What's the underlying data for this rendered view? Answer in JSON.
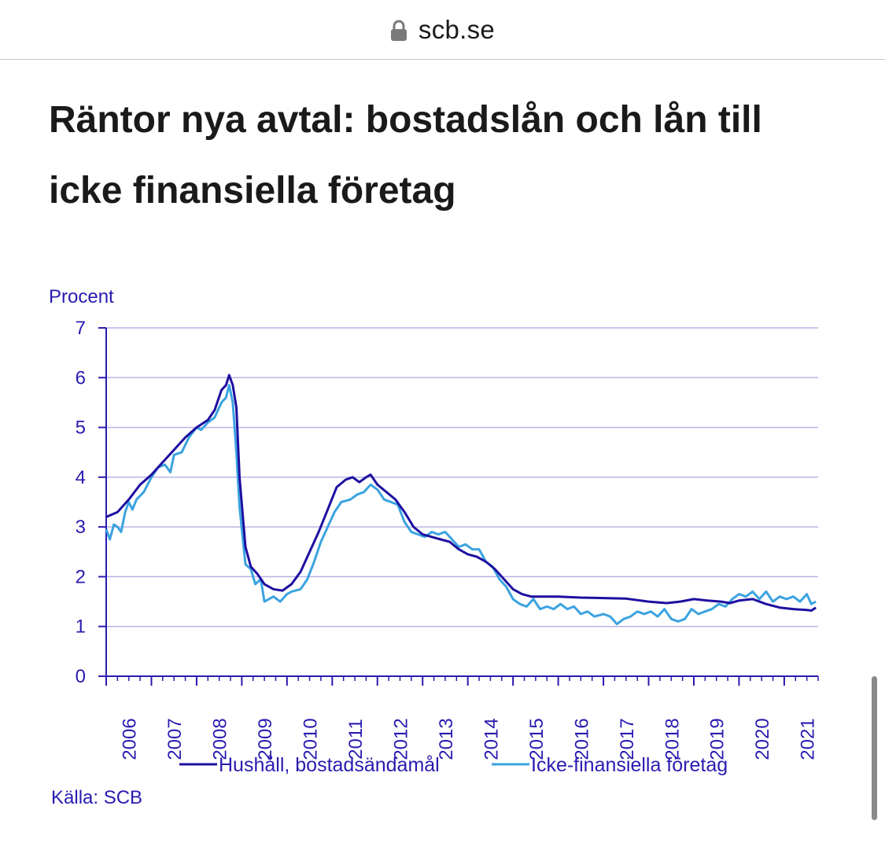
{
  "browser": {
    "domain": "scb.se",
    "lock_icon": "lock-icon"
  },
  "article": {
    "title": "Räntor nya avtal: bostadslån och lån till icke finansiella företag"
  },
  "chart_data": {
    "type": "line",
    "title": "",
    "ylabel": "Procent",
    "xlabel": "",
    "ylim": [
      0,
      7
    ],
    "yticks": [
      "0",
      "1",
      "2",
      "3",
      "4",
      "5",
      "6",
      "7"
    ],
    "xlim": [
      2006.0,
      2021.75
    ],
    "xticks": [
      "2006",
      "2007",
      "2008",
      "2009",
      "2010",
      "2011",
      "2012",
      "2013",
      "2014",
      "2015",
      "2016",
      "2017",
      "2018",
      "2019",
      "2020",
      "2021"
    ],
    "grid": true,
    "legend_position": "bottom",
    "source": "Källa: SCB",
    "series": [
      {
        "name": "Hushåll, bostadsändamål",
        "color": "#1e0fa0",
        "points": [
          [
            2006.0,
            3.2
          ],
          [
            2006.25,
            3.3
          ],
          [
            2006.5,
            3.55
          ],
          [
            2006.75,
            3.85
          ],
          [
            2007.0,
            4.05
          ],
          [
            2007.25,
            4.3
          ],
          [
            2007.5,
            4.55
          ],
          [
            2007.75,
            4.8
          ],
          [
            2008.0,
            5.0
          ],
          [
            2008.25,
            5.15
          ],
          [
            2008.4,
            5.35
          ],
          [
            2008.55,
            5.75
          ],
          [
            2008.65,
            5.85
          ],
          [
            2008.72,
            6.05
          ],
          [
            2008.8,
            5.85
          ],
          [
            2008.88,
            5.4
          ],
          [
            2008.95,
            4.0
          ],
          [
            2009.08,
            2.6
          ],
          [
            2009.2,
            2.2
          ],
          [
            2009.35,
            2.05
          ],
          [
            2009.5,
            1.85
          ],
          [
            2009.7,
            1.75
          ],
          [
            2009.9,
            1.72
          ],
          [
            2010.1,
            1.85
          ],
          [
            2010.3,
            2.1
          ],
          [
            2010.5,
            2.5
          ],
          [
            2010.7,
            2.9
          ],
          [
            2010.9,
            3.35
          ],
          [
            2011.1,
            3.8
          ],
          [
            2011.3,
            3.95
          ],
          [
            2011.45,
            4.0
          ],
          [
            2011.6,
            3.9
          ],
          [
            2011.75,
            4.0
          ],
          [
            2011.85,
            4.05
          ],
          [
            2012.0,
            3.85
          ],
          [
            2012.2,
            3.7
          ],
          [
            2012.4,
            3.55
          ],
          [
            2012.6,
            3.3
          ],
          [
            2012.8,
            3.0
          ],
          [
            2013.0,
            2.85
          ],
          [
            2013.2,
            2.8
          ],
          [
            2013.4,
            2.75
          ],
          [
            2013.6,
            2.7
          ],
          [
            2013.8,
            2.55
          ],
          [
            2014.0,
            2.45
          ],
          [
            2014.2,
            2.4
          ],
          [
            2014.4,
            2.3
          ],
          [
            2014.6,
            2.15
          ],
          [
            2014.8,
            1.95
          ],
          [
            2015.0,
            1.75
          ],
          [
            2015.2,
            1.65
          ],
          [
            2015.4,
            1.6
          ],
          [
            2015.6,
            1.6
          ],
          [
            2016.0,
            1.6
          ],
          [
            2016.5,
            1.58
          ],
          [
            2017.0,
            1.57
          ],
          [
            2017.5,
            1.56
          ],
          [
            2018.0,
            1.5
          ],
          [
            2018.4,
            1.47
          ],
          [
            2018.7,
            1.5
          ],
          [
            2019.0,
            1.55
          ],
          [
            2019.3,
            1.52
          ],
          [
            2019.6,
            1.5
          ],
          [
            2019.8,
            1.47
          ],
          [
            2020.0,
            1.52
          ],
          [
            2020.3,
            1.55
          ],
          [
            2020.6,
            1.45
          ],
          [
            2020.9,
            1.38
          ],
          [
            2021.2,
            1.35
          ],
          [
            2021.5,
            1.33
          ],
          [
            2021.6,
            1.32
          ],
          [
            2021.7,
            1.38
          ]
        ]
      },
      {
        "name": "Icke-finansiella företag",
        "color": "#3ba3e0",
        "points": [
          [
            2006.0,
            2.95
          ],
          [
            2006.08,
            2.75
          ],
          [
            2006.17,
            3.05
          ],
          [
            2006.25,
            3.0
          ],
          [
            2006.33,
            2.9
          ],
          [
            2006.42,
            3.3
          ],
          [
            2006.5,
            3.5
          ],
          [
            2006.58,
            3.35
          ],
          [
            2006.67,
            3.55
          ],
          [
            2006.83,
            3.7
          ],
          [
            2007.0,
            4.0
          ],
          [
            2007.15,
            4.2
          ],
          [
            2007.3,
            4.25
          ],
          [
            2007.42,
            4.1
          ],
          [
            2007.5,
            4.45
          ],
          [
            2007.67,
            4.5
          ],
          [
            2007.83,
            4.8
          ],
          [
            2008.0,
            5.0
          ],
          [
            2008.1,
            4.95
          ],
          [
            2008.25,
            5.1
          ],
          [
            2008.4,
            5.2
          ],
          [
            2008.55,
            5.5
          ],
          [
            2008.65,
            5.6
          ],
          [
            2008.72,
            5.85
          ],
          [
            2008.8,
            5.5
          ],
          [
            2008.88,
            4.5
          ],
          [
            2008.95,
            3.4
          ],
          [
            2009.08,
            2.25
          ],
          [
            2009.2,
            2.15
          ],
          [
            2009.3,
            1.85
          ],
          [
            2009.42,
            1.95
          ],
          [
            2009.5,
            1.5
          ],
          [
            2009.6,
            1.55
          ],
          [
            2009.7,
            1.6
          ],
          [
            2009.85,
            1.5
          ],
          [
            2010.0,
            1.65
          ],
          [
            2010.1,
            1.7
          ],
          [
            2010.3,
            1.75
          ],
          [
            2010.45,
            1.95
          ],
          [
            2010.6,
            2.3
          ],
          [
            2010.75,
            2.7
          ],
          [
            2010.9,
            3.0
          ],
          [
            2011.05,
            3.3
          ],
          [
            2011.2,
            3.5
          ],
          [
            2011.4,
            3.55
          ],
          [
            2011.55,
            3.65
          ],
          [
            2011.7,
            3.7
          ],
          [
            2011.85,
            3.85
          ],
          [
            2012.0,
            3.75
          ],
          [
            2012.15,
            3.55
          ],
          [
            2012.3,
            3.5
          ],
          [
            2012.45,
            3.45
          ],
          [
            2012.6,
            3.1
          ],
          [
            2012.75,
            2.9
          ],
          [
            2012.9,
            2.85
          ],
          [
            2013.05,
            2.8
          ],
          [
            2013.2,
            2.9
          ],
          [
            2013.35,
            2.85
          ],
          [
            2013.5,
            2.9
          ],
          [
            2013.65,
            2.75
          ],
          [
            2013.8,
            2.6
          ],
          [
            2013.95,
            2.65
          ],
          [
            2014.1,
            2.55
          ],
          [
            2014.25,
            2.55
          ],
          [
            2014.4,
            2.3
          ],
          [
            2014.55,
            2.2
          ],
          [
            2014.7,
            1.95
          ],
          [
            2014.85,
            1.8
          ],
          [
            2015.0,
            1.55
          ],
          [
            2015.15,
            1.45
          ],
          [
            2015.3,
            1.4
          ],
          [
            2015.45,
            1.55
          ],
          [
            2015.6,
            1.35
          ],
          [
            2015.75,
            1.4
          ],
          [
            2015.9,
            1.35
          ],
          [
            2016.05,
            1.45
          ],
          [
            2016.2,
            1.35
          ],
          [
            2016.35,
            1.4
          ],
          [
            2016.5,
            1.25
          ],
          [
            2016.65,
            1.3
          ],
          [
            2016.8,
            1.2
          ],
          [
            2017.0,
            1.25
          ],
          [
            2017.15,
            1.2
          ],
          [
            2017.3,
            1.05
          ],
          [
            2017.45,
            1.15
          ],
          [
            2017.6,
            1.2
          ],
          [
            2017.75,
            1.3
          ],
          [
            2017.9,
            1.25
          ],
          [
            2018.05,
            1.3
          ],
          [
            2018.2,
            1.2
          ],
          [
            2018.35,
            1.35
          ],
          [
            2018.5,
            1.15
          ],
          [
            2018.65,
            1.1
          ],
          [
            2018.8,
            1.15
          ],
          [
            2018.95,
            1.35
          ],
          [
            2019.1,
            1.25
          ],
          [
            2019.25,
            1.3
          ],
          [
            2019.4,
            1.35
          ],
          [
            2019.55,
            1.45
          ],
          [
            2019.7,
            1.4
          ],
          [
            2019.85,
            1.55
          ],
          [
            2020.0,
            1.65
          ],
          [
            2020.15,
            1.6
          ],
          [
            2020.3,
            1.7
          ],
          [
            2020.45,
            1.55
          ],
          [
            2020.6,
            1.7
          ],
          [
            2020.75,
            1.5
          ],
          [
            2020.9,
            1.6
          ],
          [
            2021.05,
            1.55
          ],
          [
            2021.2,
            1.6
          ],
          [
            2021.35,
            1.5
          ],
          [
            2021.5,
            1.65
          ],
          [
            2021.6,
            1.45
          ],
          [
            2021.7,
            1.5
          ]
        ]
      }
    ]
  }
}
